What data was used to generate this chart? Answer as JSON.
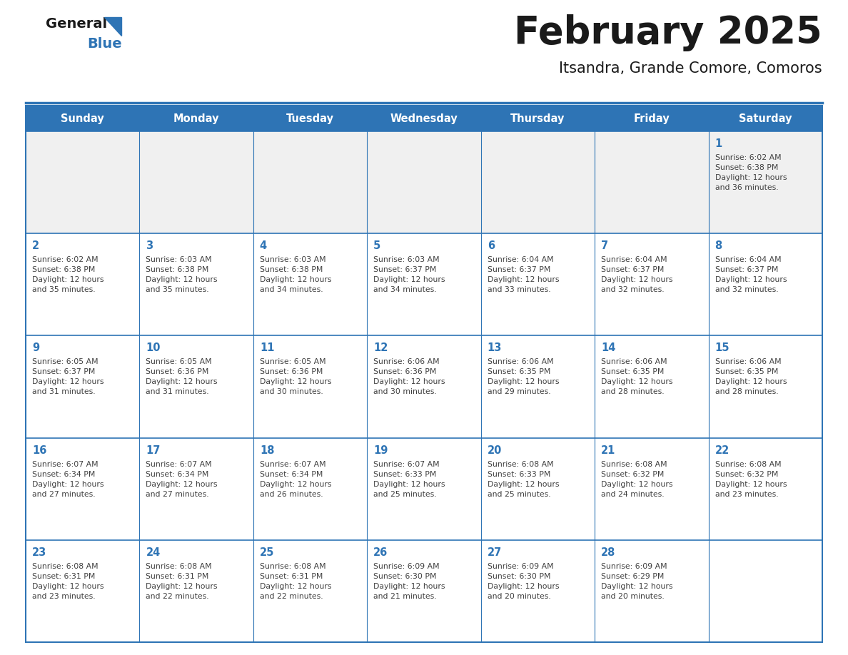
{
  "title": "February 2025",
  "subtitle": "Itsandra, Grande Comore, Comoros",
  "days_of_week": [
    "Sunday",
    "Monday",
    "Tuesday",
    "Wednesday",
    "Thursday",
    "Friday",
    "Saturday"
  ],
  "header_bg": "#2E74B5",
  "header_text": "#FFFFFF",
  "cell_bg_white": "#FFFFFF",
  "cell_bg_gray": "#F0F0F0",
  "border_color": "#2E74B5",
  "day_number_color": "#2E74B5",
  "text_color": "#404040",
  "background": "#FFFFFF",
  "logo_general_color": "#1A1A1A",
  "logo_blue_color": "#2E74B5",
  "weeks": [
    [
      {
        "day": null,
        "info": null
      },
      {
        "day": null,
        "info": null
      },
      {
        "day": null,
        "info": null
      },
      {
        "day": null,
        "info": null
      },
      {
        "day": null,
        "info": null
      },
      {
        "day": null,
        "info": null
      },
      {
        "day": 1,
        "info": "Sunrise: 6:02 AM\nSunset: 6:38 PM\nDaylight: 12 hours\nand 36 minutes."
      }
    ],
    [
      {
        "day": 2,
        "info": "Sunrise: 6:02 AM\nSunset: 6:38 PM\nDaylight: 12 hours\nand 35 minutes."
      },
      {
        "day": 3,
        "info": "Sunrise: 6:03 AM\nSunset: 6:38 PM\nDaylight: 12 hours\nand 35 minutes."
      },
      {
        "day": 4,
        "info": "Sunrise: 6:03 AM\nSunset: 6:38 PM\nDaylight: 12 hours\nand 34 minutes."
      },
      {
        "day": 5,
        "info": "Sunrise: 6:03 AM\nSunset: 6:37 PM\nDaylight: 12 hours\nand 34 minutes."
      },
      {
        "day": 6,
        "info": "Sunrise: 6:04 AM\nSunset: 6:37 PM\nDaylight: 12 hours\nand 33 minutes."
      },
      {
        "day": 7,
        "info": "Sunrise: 6:04 AM\nSunset: 6:37 PM\nDaylight: 12 hours\nand 32 minutes."
      },
      {
        "day": 8,
        "info": "Sunrise: 6:04 AM\nSunset: 6:37 PM\nDaylight: 12 hours\nand 32 minutes."
      }
    ],
    [
      {
        "day": 9,
        "info": "Sunrise: 6:05 AM\nSunset: 6:37 PM\nDaylight: 12 hours\nand 31 minutes."
      },
      {
        "day": 10,
        "info": "Sunrise: 6:05 AM\nSunset: 6:36 PM\nDaylight: 12 hours\nand 31 minutes."
      },
      {
        "day": 11,
        "info": "Sunrise: 6:05 AM\nSunset: 6:36 PM\nDaylight: 12 hours\nand 30 minutes."
      },
      {
        "day": 12,
        "info": "Sunrise: 6:06 AM\nSunset: 6:36 PM\nDaylight: 12 hours\nand 30 minutes."
      },
      {
        "day": 13,
        "info": "Sunrise: 6:06 AM\nSunset: 6:35 PM\nDaylight: 12 hours\nand 29 minutes."
      },
      {
        "day": 14,
        "info": "Sunrise: 6:06 AM\nSunset: 6:35 PM\nDaylight: 12 hours\nand 28 minutes."
      },
      {
        "day": 15,
        "info": "Sunrise: 6:06 AM\nSunset: 6:35 PM\nDaylight: 12 hours\nand 28 minutes."
      }
    ],
    [
      {
        "day": 16,
        "info": "Sunrise: 6:07 AM\nSunset: 6:34 PM\nDaylight: 12 hours\nand 27 minutes."
      },
      {
        "day": 17,
        "info": "Sunrise: 6:07 AM\nSunset: 6:34 PM\nDaylight: 12 hours\nand 27 minutes."
      },
      {
        "day": 18,
        "info": "Sunrise: 6:07 AM\nSunset: 6:34 PM\nDaylight: 12 hours\nand 26 minutes."
      },
      {
        "day": 19,
        "info": "Sunrise: 6:07 AM\nSunset: 6:33 PM\nDaylight: 12 hours\nand 25 minutes."
      },
      {
        "day": 20,
        "info": "Sunrise: 6:08 AM\nSunset: 6:33 PM\nDaylight: 12 hours\nand 25 minutes."
      },
      {
        "day": 21,
        "info": "Sunrise: 6:08 AM\nSunset: 6:32 PM\nDaylight: 12 hours\nand 24 minutes."
      },
      {
        "day": 22,
        "info": "Sunrise: 6:08 AM\nSunset: 6:32 PM\nDaylight: 12 hours\nand 23 minutes."
      }
    ],
    [
      {
        "day": 23,
        "info": "Sunrise: 6:08 AM\nSunset: 6:31 PM\nDaylight: 12 hours\nand 23 minutes."
      },
      {
        "day": 24,
        "info": "Sunrise: 6:08 AM\nSunset: 6:31 PM\nDaylight: 12 hours\nand 22 minutes."
      },
      {
        "day": 25,
        "info": "Sunrise: 6:08 AM\nSunset: 6:31 PM\nDaylight: 12 hours\nand 22 minutes."
      },
      {
        "day": 26,
        "info": "Sunrise: 6:09 AM\nSunset: 6:30 PM\nDaylight: 12 hours\nand 21 minutes."
      },
      {
        "day": 27,
        "info": "Sunrise: 6:09 AM\nSunset: 6:30 PM\nDaylight: 12 hours\nand 20 minutes."
      },
      {
        "day": 28,
        "info": "Sunrise: 6:09 AM\nSunset: 6:29 PM\nDaylight: 12 hours\nand 20 minutes."
      },
      {
        "day": null,
        "info": null
      }
    ]
  ]
}
